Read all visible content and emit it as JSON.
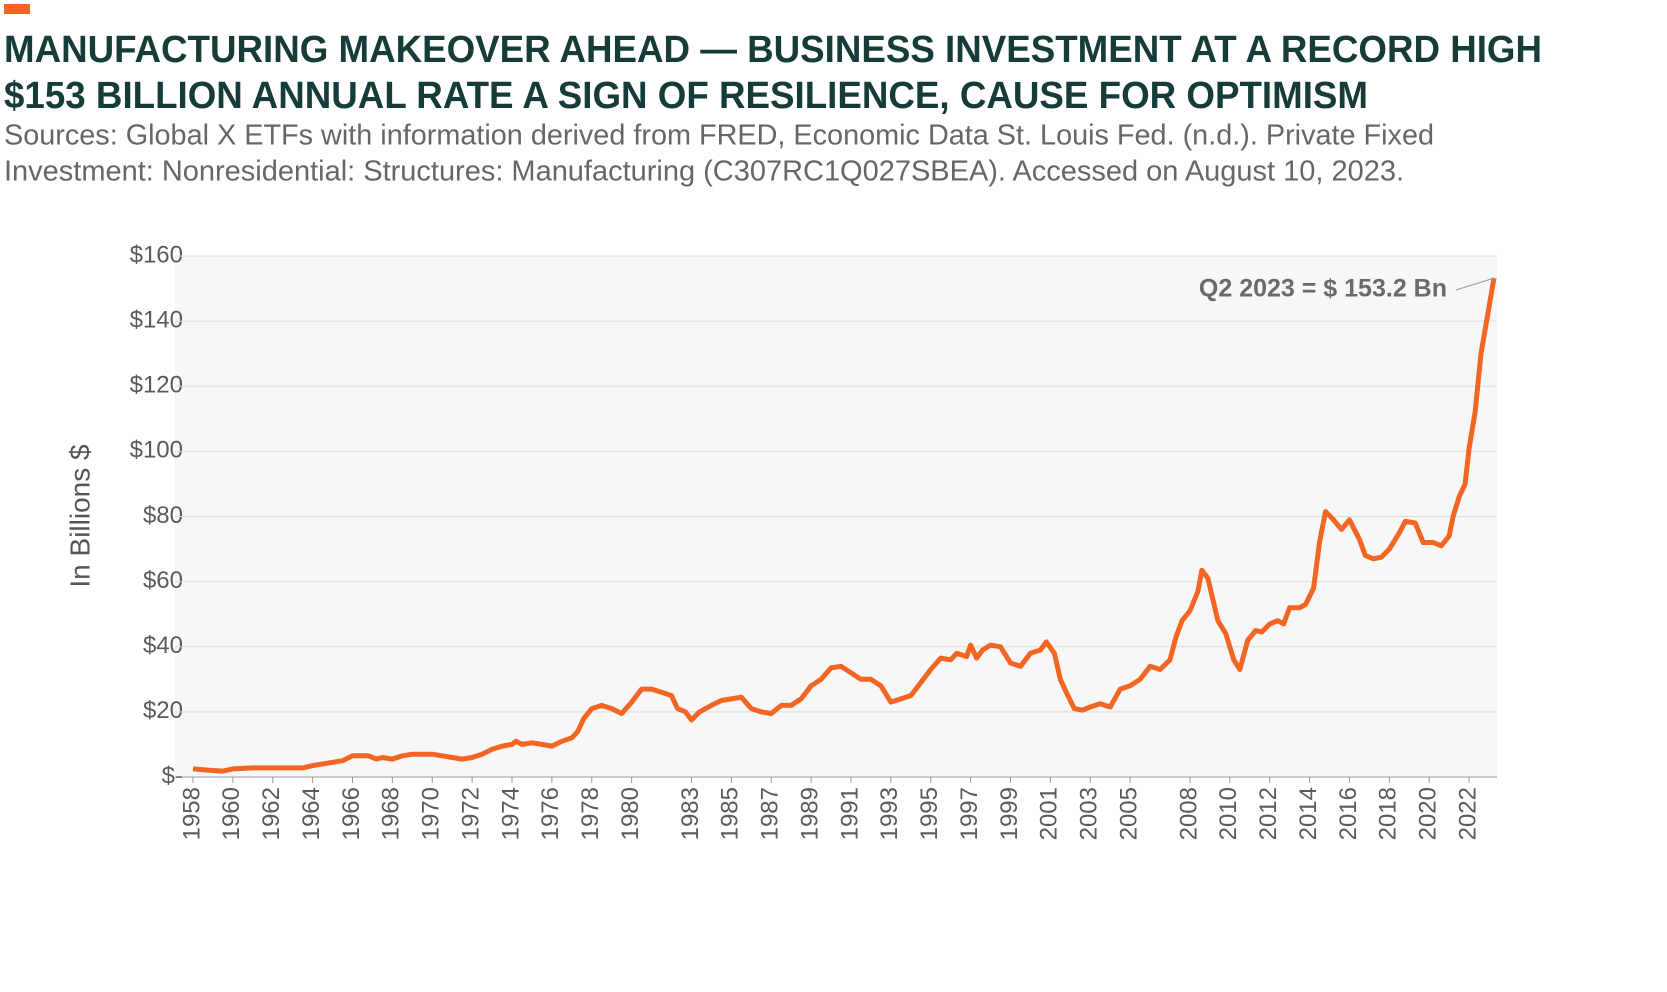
{
  "chart_data": {
    "type": "line",
    "title": "MANUFACTURING MAKEOVER AHEAD — BUSINESS INVESTMENT AT A RECORD HIGH",
    "subtitle": "$153 BILLION ANNUAL RATE A SIGN OF RESILIENCE, CAUSE FOR OPTIMISM",
    "source": [
      "Sources: Global X ETFs with information derived from FRED, Economic Data St. Louis Fed. (n.d.). Private Fixed",
      "Investment: Nonresidential: Structures: Manufacturing (C307RC1Q027SBEA). Accessed on August 10, 2023."
    ],
    "ylabel": "In Billions $",
    "annotation": "Q2 2023 = $ 153.2 Bn",
    "color": "#f26522",
    "grid": true,
    "x": [
      1958,
      1959,
      1959.5,
      1960,
      1961,
      1962,
      1963,
      1963.5,
      1964,
      1965,
      1965.5,
      1966,
      1966.8,
      1967.2,
      1967.5,
      1968,
      1968.5,
      1969,
      1970,
      1970.5,
      1971,
      1971.5,
      1972,
      1972.5,
      1973,
      1973.5,
      1974,
      1974.2,
      1974.5,
      1975,
      1975.5,
      1976,
      1976.5,
      1977,
      1977.3,
      1977.6,
      1978,
      1978.5,
      1979,
      1979.5,
      1980,
      1980.5,
      1981,
      1981.5,
      1982,
      1982.3,
      1982.7,
      1983,
      1983.4,
      1984,
      1984.5,
      1985,
      1985.5,
      1986,
      1986.5,
      1987,
      1987.5,
      1988,
      1988.5,
      1989,
      1989.5,
      1990,
      1990.5,
      1991,
      1991.5,
      1992,
      1992.5,
      1993,
      1993.5,
      1994,
      1994.5,
      1995,
      1995.5,
      1996,
      1996.3,
      1996.8,
      1997,
      1997.3,
      1997.6,
      1998,
      1998.5,
      1999,
      1999.5,
      2000,
      2000.5,
      2000.8,
      2001.2,
      2001.5,
      2001.8,
      2002.2,
      2002.6,
      2003,
      2003.5,
      2004,
      2004.5,
      2005,
      2005.5,
      2006,
      2006.5,
      2007,
      2007.3,
      2007.6,
      2008,
      2008.4,
      2008.6,
      2008.9,
      2009.4,
      2009.8,
      2010.2,
      2010.5,
      2010.9,
      2011.3,
      2011.6,
      2012,
      2012.4,
      2012.7,
      2013,
      2013.5,
      2013.8,
      2014.2,
      2014.5,
      2014.8,
      2015.2,
      2015.6,
      2016,
      2016.5,
      2016.8,
      2017.2,
      2017.6,
      2018,
      2018.5,
      2018.8,
      2019.3,
      2019.7,
      2020.2,
      2020.6,
      2021,
      2021.2,
      2021.5,
      2021.8,
      2022,
      2022.3,
      2022.6,
      2023.25
    ],
    "values": [
      2.5,
      2,
      1.8,
      2.5,
      2.8,
      2.8,
      2.8,
      2.8,
      3.5,
      4.5,
      5,
      6.5,
      6.5,
      5.5,
      6,
      5.5,
      6.5,
      7,
      7,
      6.5,
      6,
      5.5,
      6,
      7,
      8.5,
      9.5,
      10,
      11,
      10,
      10.5,
      10,
      9.5,
      11,
      12,
      14,
      18,
      21,
      22,
      21,
      19.5,
      23,
      27,
      27,
      26,
      25,
      21,
      20,
      17.5,
      20,
      22,
      23.5,
      24,
      24.5,
      21,
      20,
      19.5,
      22,
      22,
      24,
      28,
      30,
      33.5,
      34,
      32,
      30,
      30,
      28,
      23,
      24,
      25,
      29,
      33,
      36.5,
      36,
      38,
      37,
      40.5,
      36.5,
      39,
      40.5,
      40,
      35,
      34,
      38,
      39,
      41.5,
      38,
      30,
      26,
      21,
      20.5,
      21.5,
      22.5,
      21.5,
      27,
      28,
      30,
      34,
      33,
      36,
      43,
      48,
      51,
      57,
      63.5,
      61,
      48,
      44,
      36,
      33,
      42,
      45,
      44.5,
      47,
      48,
      47,
      52,
      52,
      53,
      58,
      72,
      81.5,
      79,
      76,
      79,
      73,
      68,
      67,
      67.5,
      70,
      75,
      78.5,
      78,
      72,
      72,
      71,
      74,
      80,
      86,
      90,
      101,
      112,
      130,
      153.2
    ],
    "xlim": [
      1958,
      2023.3
    ],
    "xticks": [
      1958,
      1960,
      1962,
      1964,
      1966,
      1968,
      1970,
      1972,
      1974,
      1976,
      1978,
      1980,
      1983,
      1985,
      1987,
      1989,
      1991,
      1993,
      1995,
      1997,
      1999,
      2001,
      2003,
      2005,
      2008,
      2010,
      2012,
      2014,
      2016,
      2018,
      2020,
      2022
    ],
    "ylim": [
      0,
      160
    ],
    "yticks": [
      {
        "value": 0,
        "label": "$-"
      },
      {
        "value": 20,
        "label": "$20"
      },
      {
        "value": 40,
        "label": "$40"
      },
      {
        "value": 60,
        "label": "$60"
      },
      {
        "value": 80,
        "label": "$80"
      },
      {
        "value": 100,
        "label": "$100"
      },
      {
        "value": 120,
        "label": "$120"
      },
      {
        "value": 140,
        "label": "$140"
      },
      {
        "value": 160,
        "label": "$160"
      }
    ]
  }
}
